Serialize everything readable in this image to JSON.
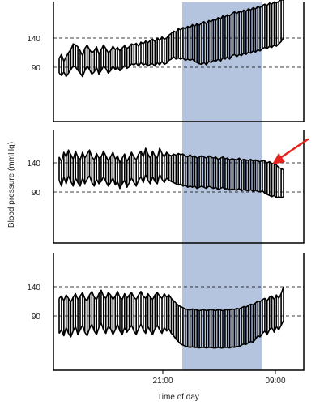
{
  "chart_data": [
    {
      "type": "line",
      "panel": "top",
      "y_ticks": [
        90,
        140
      ],
      "x": [
        0,
        0.25,
        0.5,
        0.75,
        1,
        1.25,
        1.5,
        1.75,
        2,
        2.25,
        2.5,
        2.75,
        3,
        3.25,
        3.5,
        3.75,
        4,
        4.25,
        4.5,
        4.75,
        5,
        5.25,
        5.5,
        5.75,
        6,
        6.25,
        6.5,
        6.75,
        7,
        7.25,
        7.5,
        7.75,
        8,
        8.25,
        8.5,
        8.75,
        9,
        9.25,
        9.5,
        9.75,
        10,
        10.25,
        10.5,
        10.75,
        11,
        11.25,
        11.5,
        11.75,
        12,
        12.25,
        12.5,
        12.75,
        13,
        13.25,
        13.5,
        13.75,
        14,
        14.25,
        14.5,
        14.75,
        15,
        15.25,
        15.5,
        15.75,
        16,
        16.25,
        16.5,
        16.75,
        17,
        17.25,
        17.5,
        17.75,
        18,
        18.25,
        18.5,
        18.75,
        19,
        19.25,
        19.5,
        19.75,
        20,
        20.25,
        20.5,
        20.75,
        21,
        21.25,
        21.5,
        21.75,
        22,
        22.25,
        22.5,
        22.75,
        23,
        23.25,
        23.5,
        23.75,
        24
      ],
      "series": [
        {
          "values": [
            105,
            112,
            100,
            108,
            115,
            120,
            130,
            128,
            125,
            118,
            110,
            122,
            128,
            120,
            115,
            118,
            125,
            112,
            120,
            128,
            122,
            115,
            118,
            126,
            120,
            124,
            118,
            123,
            127,
            122,
            125,
            130,
            128,
            131,
            126,
            133,
            130,
            135,
            132,
            136,
            138,
            134,
            140,
            136,
            142,
            138,
            140,
            145,
            148,
            152,
            150,
            156,
            154,
            158,
            156,
            160,
            158,
            163,
            160,
            165,
            162,
            166,
            168,
            164,
            170,
            168,
            172,
            170,
            175,
            172,
            178,
            176,
            180,
            178,
            182,
            185,
            182,
            186,
            184,
            188,
            186,
            190,
            188,
            192,
            190,
            194,
            192,
            196,
            198,
            196,
            200,
            198,
            202,
            200,
            203,
            206,
            205
          ]
        },
        {
          "values": [
            80,
            76,
            82,
            74,
            80,
            86,
            92,
            90,
            85,
            80,
            74,
            84,
            92,
            86,
            78,
            82,
            90,
            78,
            84,
            92,
            88,
            80,
            84,
            92,
            86,
            90,
            84,
            88,
            93,
            88,
            91,
            96,
            94,
            97,
            92,
            98,
            94,
            96,
            92,
            95,
            96,
            92,
            98,
            94,
            100,
            95,
            97,
            102,
            104,
            108,
            104,
            106,
            104,
            106,
            102,
            104,
            102,
            104,
            100,
            98,
            96,
            95,
            98,
            94,
            100,
            98,
            102,
            100,
            104,
            100,
            106,
            104,
            108,
            104,
            110,
            112,
            108,
            112,
            110,
            114,
            112,
            116,
            114,
            118,
            116,
            120,
            118,
            122,
            124,
            122,
            126,
            124,
            128,
            126,
            130,
            134,
            140
          ]
        }
      ]
    },
    {
      "type": "line",
      "panel": "middle",
      "y_ticks": [
        90,
        140
      ],
      "x": [
        0,
        0.25,
        0.5,
        0.75,
        1,
        1.25,
        1.5,
        1.75,
        2,
        2.25,
        2.5,
        2.75,
        3,
        3.25,
        3.5,
        3.75,
        4,
        4.25,
        4.5,
        4.75,
        5,
        5.25,
        5.5,
        5.75,
        6,
        6.25,
        6.5,
        6.75,
        7,
        7.25,
        7.5,
        7.75,
        8,
        8.25,
        8.5,
        8.75,
        9,
        9.25,
        9.5,
        9.75,
        10,
        10.25,
        10.5,
        10.75,
        11,
        11.25,
        11.5,
        11.75,
        12,
        12.25,
        12.5,
        12.75,
        13,
        13.25,
        13.5,
        13.75,
        14,
        14.25,
        14.5,
        14.75,
        15,
        15.25,
        15.5,
        15.75,
        16,
        16.25,
        16.5,
        16.75,
        17,
        17.25,
        17.5,
        17.75,
        18,
        18.25,
        18.5,
        18.75,
        19,
        19.25,
        19.5,
        19.75,
        20,
        20.25,
        20.5,
        20.75,
        21,
        21.25,
        21.5,
        21.75,
        22,
        22.25,
        22.5,
        22.75,
        23,
        23.25,
        23.5,
        23.75,
        24
      ],
      "series": [
        {
          "values": [
            150,
            142,
            158,
            150,
            162,
            154,
            146,
            160,
            150,
            145,
            158,
            148,
            155,
            162,
            150,
            145,
            156,
            148,
            150,
            160,
            152,
            144,
            150,
            158,
            146,
            152,
            140,
            148,
            155,
            142,
            150,
            158,
            150,
            145,
            155,
            160,
            150,
            165,
            155,
            148,
            160,
            152,
            148,
            165,
            156,
            150,
            158,
            154,
            152,
            155,
            153,
            156,
            154,
            155,
            152,
            150,
            154,
            150,
            152,
            148,
            150,
            152,
            150,
            148,
            152,
            150,
            148,
            150,
            146,
            148,
            150,
            147,
            148,
            145,
            147,
            146,
            145,
            148,
            144,
            146,
            145,
            144,
            146,
            143,
            145,
            143,
            142,
            144,
            143,
            140,
            142,
            138,
            140,
            136,
            132,
            130,
            128
          ]
        },
        {
          "values": [
            110,
            100,
            116,
            104,
            118,
            108,
            100,
            114,
            106,
            100,
            114,
            104,
            112,
            118,
            106,
            100,
            112,
            104,
            108,
            116,
            108,
            100,
            106,
            114,
            102,
            108,
            96,
            104,
            110,
            98,
            106,
            114,
            106,
            100,
            110,
            116,
            106,
            120,
            110,
            104,
            116,
            108,
            104,
            120,
            112,
            106,
            114,
            110,
            108,
            106,
            104,
            102,
            104,
            100,
            102,
            98,
            100,
            98,
            100,
            96,
            98,
            100,
            98,
            96,
            100,
            98,
            96,
            98,
            94,
            96,
            98,
            95,
            96,
            93,
            95,
            94,
            93,
            96,
            92,
            94,
            93,
            92,
            94,
            91,
            93,
            91,
            90,
            92,
            88,
            86,
            84,
            82,
            84,
            80,
            82,
            80,
            82
          ]
        }
      ]
    },
    {
      "type": "line",
      "panel": "bottom",
      "y_ticks": [
        90,
        140
      ],
      "x": [
        0,
        0.25,
        0.5,
        0.75,
        1,
        1.25,
        1.5,
        1.75,
        2,
        2.25,
        2.5,
        2.75,
        3,
        3.25,
        3.5,
        3.75,
        4,
        4.25,
        4.5,
        4.75,
        5,
        5.25,
        5.5,
        5.75,
        6,
        6.25,
        6.5,
        6.75,
        7,
        7.25,
        7.5,
        7.75,
        8,
        8.25,
        8.5,
        8.75,
        9,
        9.25,
        9.5,
        9.75,
        10,
        10.25,
        10.5,
        10.75,
        11,
        11.25,
        11.5,
        11.75,
        12,
        12.25,
        12.5,
        12.75,
        13,
        13.25,
        13.5,
        13.75,
        14,
        14.25,
        14.5,
        14.75,
        15,
        15.25,
        15.5,
        15.75,
        16,
        16.25,
        16.5,
        16.75,
        17,
        17.25,
        17.5,
        17.75,
        18,
        18.25,
        18.5,
        18.75,
        19,
        19.25,
        19.5,
        19.75,
        20,
        20.25,
        20.5,
        20.75,
        21,
        21.25,
        21.5,
        21.75,
        22,
        22.25,
        22.5,
        22.75,
        23,
        23.25,
        23.5,
        23.75,
        24
      ],
      "series": [
        {
          "values": [
            120,
            124,
            116,
            126,
            120,
            114,
            122,
            128,
            118,
            124,
            130,
            120,
            116,
            126,
            132,
            122,
            118,
            128,
            134,
            124,
            120,
            130,
            126,
            118,
            124,
            132,
            122,
            118,
            128,
            120,
            126,
            130,
            122,
            118,
            126,
            132,
            124,
            120,
            128,
            122,
            118,
            126,
            130,
            124,
            120,
            128,
            122,
            126,
            120,
            116,
            112,
            108,
            106,
            104,
            102,
            101,
            100,
            102,
            101,
            100,
            99,
            100,
            101,
            99,
            100,
            101,
            100,
            99,
            101,
            100,
            99,
            100,
            101,
            100,
            102,
            101,
            103,
            102,
            104,
            106,
            105,
            108,
            110,
            109,
            112,
            116,
            114,
            118,
            120,
            116,
            122,
            124,
            118,
            126,
            120,
            128,
            140
          ]
        },
        {
          "values": [
            60,
            66,
            56,
            70,
            60,
            54,
            64,
            72,
            58,
            66,
            74,
            62,
            56,
            68,
            76,
            64,
            58,
            70,
            78,
            66,
            60,
            72,
            68,
            58,
            66,
            76,
            64,
            58,
            70,
            62,
            68,
            74,
            64,
            58,
            68,
            76,
            66,
            60,
            72,
            64,
            58,
            68,
            74,
            66,
            60,
            70,
            64,
            68,
            60,
            56,
            50,
            46,
            42,
            40,
            38,
            37,
            36,
            37,
            36,
            36,
            35,
            36,
            36,
            35,
            36,
            36,
            35,
            35,
            36,
            35,
            35,
            36,
            36,
            35,
            37,
            36,
            38,
            37,
            40,
            42,
            41,
            44,
            46,
            45,
            50,
            56,
            54,
            60,
            64,
            58,
            66,
            70,
            62,
            72,
            66,
            74,
            82
          ]
        }
      ]
    }
  ],
  "axis": {
    "ylabel": "Blood pressure (mmHg)",
    "xlabel": "Time of day",
    "x_tick_labels": [
      "21:00",
      "09:00"
    ],
    "y_tick_labels": [
      "140",
      "90"
    ]
  },
  "colors": {
    "shade": "#b4c4de",
    "line": "#000000",
    "arrow": "#e8231e",
    "grid": "#000000"
  },
  "icons": {
    "annotation": "red-arrow-icon"
  }
}
